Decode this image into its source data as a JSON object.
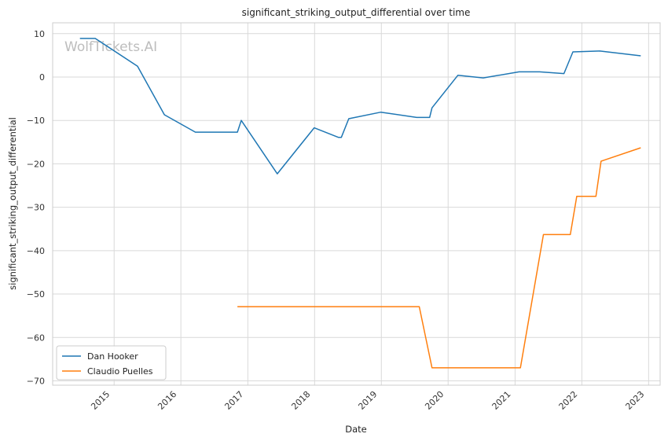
{
  "chart_data": {
    "type": "line",
    "title": "significant_striking_output_differential over time",
    "xlabel": "Date",
    "ylabel": "significant_striking_output_differential",
    "watermark": "WolfTickets.AI",
    "xlim": [
      "2014-01-30",
      "2023-03-05"
    ],
    "ylim": [
      -71,
      12.5
    ],
    "x_ticks": [
      "2015",
      "2016",
      "2017",
      "2018",
      "2019",
      "2020",
      "2021",
      "2022",
      "2023"
    ],
    "y_ticks": [
      10,
      0,
      -10,
      -20,
      -30,
      -40,
      -50,
      -60,
      -70
    ],
    "grid": true,
    "legend_position": "lower-left",
    "series": [
      {
        "name": "Dan Hooker",
        "color": "#1f77b4",
        "points": [
          [
            "2014-06-28",
            8.9
          ],
          [
            "2014-09-20",
            8.9
          ],
          [
            "2015-05-09",
            2.5
          ],
          [
            "2015-10-03",
            -8.7
          ],
          [
            "2016-03-20",
            -12.7
          ],
          [
            "2016-11-05",
            -12.7
          ],
          [
            "2016-11-26",
            -10.0
          ],
          [
            "2017-06-11",
            -22.3
          ],
          [
            "2017-12-30",
            -11.7
          ],
          [
            "2018-05-12",
            -13.9
          ],
          [
            "2018-05-27",
            -13.9
          ],
          [
            "2018-07-07",
            -9.6
          ],
          [
            "2018-12-29",
            -8.1
          ],
          [
            "2019-07-13",
            -9.3
          ],
          [
            "2019-09-22",
            -9.3
          ],
          [
            "2019-10-05",
            -7.1
          ],
          [
            "2020-02-23",
            0.4
          ],
          [
            "2020-07-11",
            -0.2
          ],
          [
            "2021-01-23",
            1.2
          ],
          [
            "2021-05-15",
            1.2
          ],
          [
            "2021-09-25",
            0.8
          ],
          [
            "2021-11-13",
            5.8
          ],
          [
            "2022-04-09",
            6.0
          ],
          [
            "2022-11-19",
            4.9
          ]
        ]
      },
      {
        "name": "Claudio Puelles",
        "color": "#ff7f0e",
        "points": [
          [
            "2016-11-05",
            -52.9
          ],
          [
            "2019-07-27",
            -52.9
          ],
          [
            "2019-10-05",
            -67.0
          ],
          [
            "2021-01-30",
            -67.0
          ],
          [
            "2021-06-05",
            -36.3
          ],
          [
            "2021-10-30",
            -36.3
          ],
          [
            "2021-12-04",
            -27.5
          ],
          [
            "2022-03-19",
            -27.5
          ],
          [
            "2022-04-16",
            -19.4
          ],
          [
            "2022-11-19",
            -16.3
          ]
        ]
      }
    ]
  }
}
